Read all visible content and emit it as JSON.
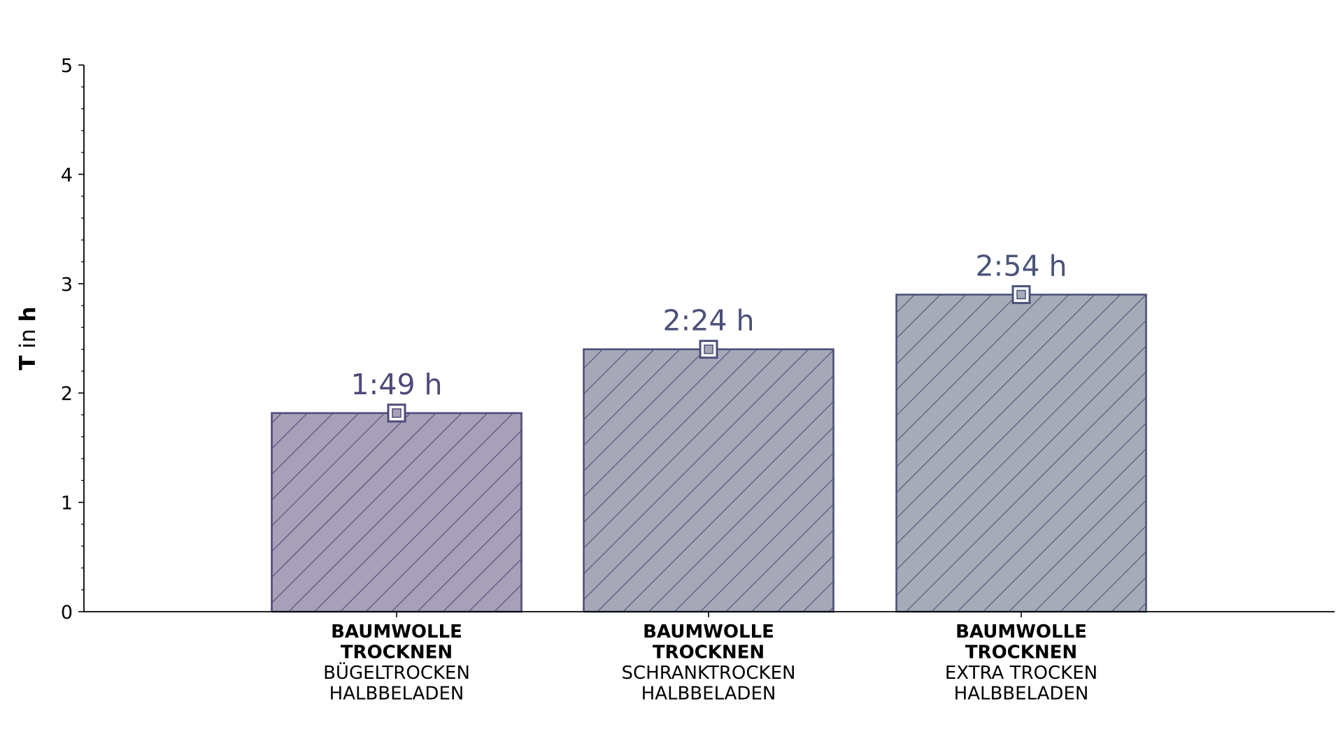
{
  "chart_data": {
    "type": "bar",
    "categories": [
      {
        "line1": "BAUMWOLLE",
        "line2": "TROCKNEN",
        "line3": "BÜGELTROCKEN",
        "line4": "HALBBELADEN"
      },
      {
        "line1": "BAUMWOLLE",
        "line2": "TROCKNEN",
        "line3": "SCHRANKTROCKEN",
        "line4": "HALBBELADEN"
      },
      {
        "line1": "BAUMWOLLE",
        "line2": "TROCKNEN",
        "line3": "EXTRA TROCKEN",
        "line4": "HALBBELADEN"
      }
    ],
    "values": [
      1.8167,
      2.4,
      2.9
    ],
    "value_labels": [
      "1:49 h",
      "2:24 h",
      "2:54 h"
    ],
    "ylabel": {
      "part1": "T",
      "part2": " in ",
      "part3": "h"
    },
    "ylim": [
      0,
      5
    ],
    "yticks": [
      "0",
      "1",
      "2",
      "3",
      "4",
      "5"
    ],
    "bar_colors": [
      "#a8a0b8",
      "#a6a8b8",
      "#a6abb8"
    ],
    "bar_edge_colors": [
      "#4e4a78",
      "#4c4f78",
      "#4a5478"
    ],
    "label_colors": [
      "#4e4a78",
      "#4c4f78",
      "#4a5478"
    ],
    "hatch": "diagonal",
    "grid": false,
    "legend": "none"
  }
}
